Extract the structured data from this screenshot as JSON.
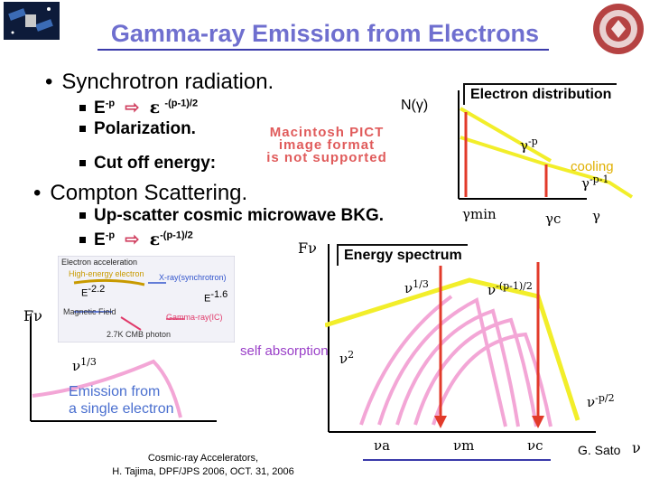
{
  "title": "Gamma-ray Emission from Electrons",
  "bullets": {
    "synchrotron": "Synchrotron radiation.",
    "sync_sub1_a": "E",
    "sync_sub1_sup1": "-p",
    "sync_sub1_eps": "ε",
    "sync_sub1_sup2": "-(p-1)/2",
    "sync_sub2": "Polarization.",
    "sync_sub3": "Cut off energy:",
    "compton": "Compton Scattering.",
    "comp_sub1": "Up-scatter cosmic microwave BKG.",
    "comp_sub2_a": "E",
    "comp_sub2_sup1": "-p",
    "comp_sub2_eps": "ε",
    "comp_sub2_sup2": "-(p-1)/2"
  },
  "placeholder_image": {
    "line1": "Macintosh PICT",
    "line2": "image format",
    "line3": "is not supported"
  },
  "electron_distribution": {
    "box_label": "Electron distribution",
    "y_label": "N(γ)",
    "slope1": "γ",
    "slope1_sup": "-p",
    "cooling": "cooling",
    "slope2": "γ",
    "slope2_sup": "-p-1",
    "gamma_min": "γmin",
    "gamma_c": "γc",
    "x_label": "γ"
  },
  "energy_spectrum": {
    "box_label": "Energy spectrum",
    "y_label": "Fν",
    "nu13_top": "ν",
    "nu13_top_sup": "1/3",
    "nu_mid": "ν",
    "nu_mid_sup": "-(p-1)/2",
    "self_absorption": "self absorption",
    "nu2": "ν",
    "nu2_sup": "2",
    "nu_right": "ν",
    "nu_right_sup": "-p/2",
    "nu_a": "νa",
    "nu_m": "νm",
    "nu_c": "νc",
    "x_label": "ν"
  },
  "single_electron": {
    "y_label": "Fν",
    "nu13": "ν",
    "nu13_sup": "1/3",
    "caption_line1": "Emission from",
    "caption_line2": "a single electron"
  },
  "inset": {
    "electron_acc": "Electron acceleration",
    "high_energy": "High-energy electron",
    "xray": "X-ray(synchrotron)",
    "e22": "E",
    "e22_sup": "-2.2",
    "e16": "E",
    "e16_sup": "-1.6",
    "magnetic": "Magnetic Field",
    "gamma_ic": "Gamma-ray(IC)",
    "cmb": "2.7K CMB photon"
  },
  "credit": {
    "line1": "Cosmic-ray Accelerators,",
    "line2": "H. Tajima, DPF/JPS 2006, OCT. 31, 2006"
  },
  "author": "G. Sato",
  "colors": {
    "title": "#6f6fcf",
    "accent_line": "#3a3aaa",
    "yellow": "#f2ee2a",
    "pink": "#f3a6d6",
    "red_arrow": "#e23a2a"
  }
}
